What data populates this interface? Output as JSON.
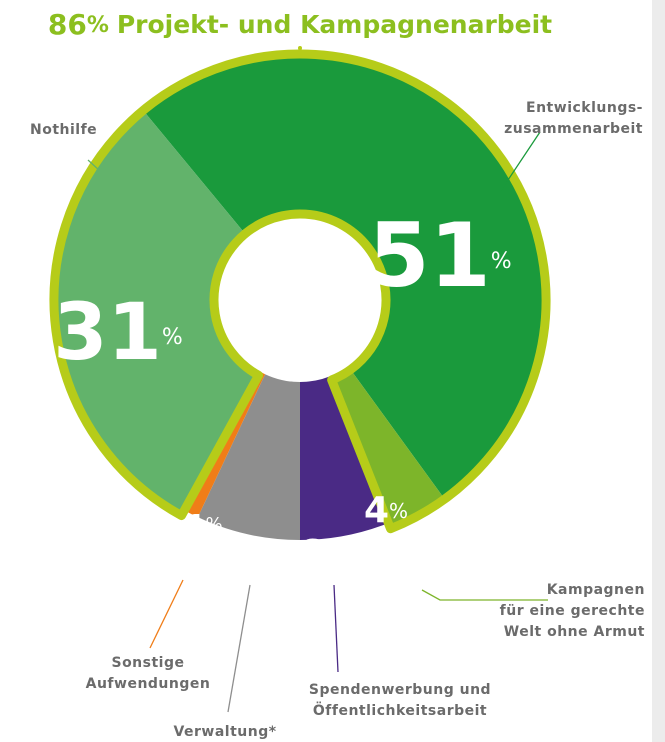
{
  "chart_data": {
    "type": "donut",
    "headline_value": 86,
    "headline_text": "Projekt- und Kampagnenarbeit",
    "unit": "%",
    "categories": [
      "Entwicklungs-\nzusammenarbeit",
      "Kampagnen\nfür eine gerechte\nWelt ohne Armut",
      "Spendenwerbung und\nÖffentlichkeitsarbeit",
      "Verwaltung*",
      "Sonstige\nAufwendungen",
      "Nothilfe"
    ],
    "values": [
      51,
      4,
      6,
      7,
      1,
      31
    ],
    "colors": [
      "#1a9a3c",
      "#7db52a",
      "#4a2a85",
      "#8e8e8e",
      "#f07d18",
      "#62b36b"
    ],
    "outline_color": "#b6cc19"
  }
}
